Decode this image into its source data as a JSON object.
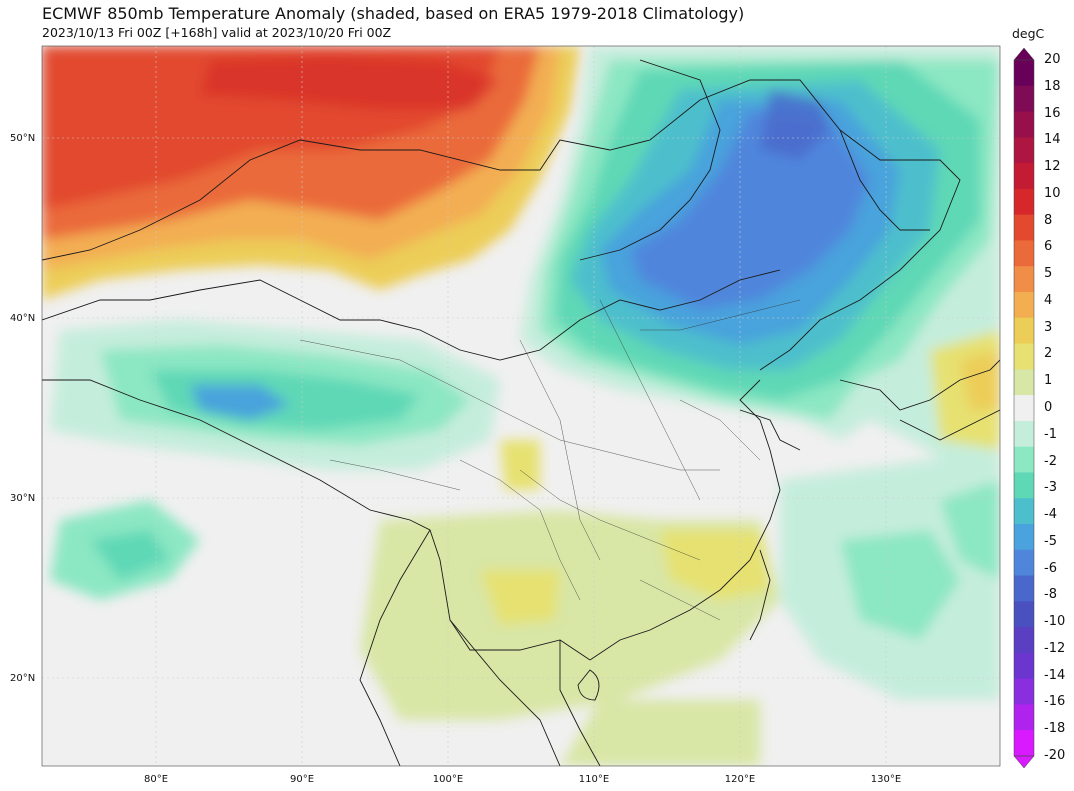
{
  "header": {
    "title": "ECMWF 850mb Temperature Anomaly (shaded, based on ERA5 1979-2018 Climatology)",
    "subtitle": "2023/10/13 Fri 00Z [+168h] valid at 2023/10/20 Fri 00Z"
  },
  "colorbar": {
    "unit": "degC",
    "levels": [
      "20",
      "18",
      "16",
      "14",
      "12",
      "10",
      "8",
      "6",
      "5",
      "4",
      "3",
      "2",
      "1",
      "0",
      "-1",
      "-2",
      "-3",
      "-4",
      "-5",
      "-6",
      "-8",
      "-10",
      "-12",
      "-14",
      "-16",
      "-18",
      "-20"
    ],
    "colors": [
      "#68005a",
      "#7f0a56",
      "#97104c",
      "#ad1640",
      "#c31b34",
      "#d6282a",
      "#e2492f",
      "#ea6a3a",
      "#f08d46",
      "#f3ae52",
      "#eccd58",
      "#e6e171",
      "#d8e6a6",
      "#f0f0f0",
      "#c5eddc",
      "#8ce7c3",
      "#5fd8b6",
      "#4dbfcc",
      "#4aa3dc",
      "#4f86dc",
      "#4a68cb",
      "#4a50bf",
      "#5a3fc2",
      "#6b35cf",
      "#8a2fe0",
      "#b022ee",
      "#d91aff"
    ]
  },
  "axes": {
    "lat_labels": [
      "50°N",
      "40°N",
      "30°N",
      "20°N"
    ],
    "lon_labels": [
      "80°E",
      "90°E",
      "100°E",
      "110°E",
      "120°E",
      "130°E"
    ]
  },
  "map": {
    "background_color": "#f0f0f0",
    "border_color": "#1a1a1a",
    "gridline_color": "#bfbfbf"
  }
}
